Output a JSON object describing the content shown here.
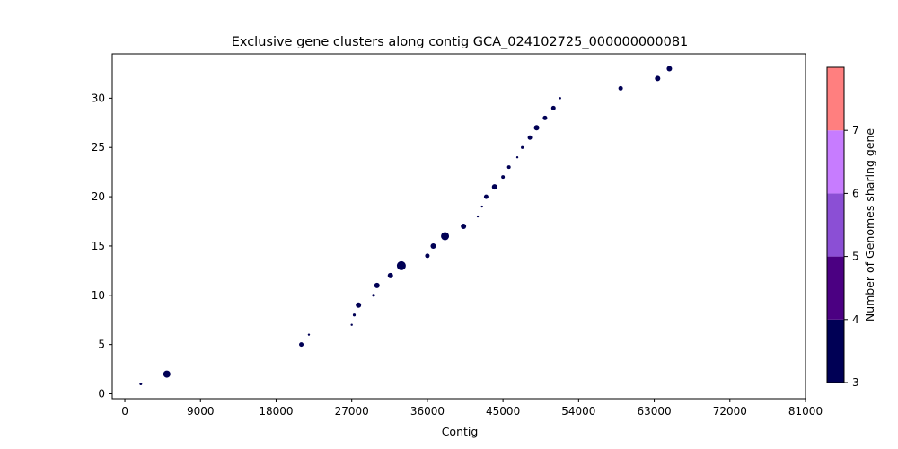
{
  "chart_data": {
    "type": "scatter",
    "title": "Exclusive gene clusters along contig GCA_024102725_000000000081",
    "xlabel": "Contig",
    "ylabel": "",
    "xlim": [
      -1500,
      81000
    ],
    "ylim": [
      -0.5,
      34.5
    ],
    "xticks": [
      0,
      9000,
      18000,
      27000,
      36000,
      45000,
      54000,
      63000,
      72000,
      81000
    ],
    "xtick_labels": [
      "0",
      "9000",
      "18000",
      "27000",
      "36000",
      "45000",
      "54000",
      "63000",
      "72000",
      "81000"
    ],
    "yticks": [
      0,
      5,
      10,
      15,
      20,
      25,
      30
    ],
    "ytick_labels": [
      "0",
      "5",
      "10",
      "15",
      "20",
      "25",
      "30"
    ],
    "grid": false,
    "points": [
      {
        "x": 1900,
        "y": 1,
        "size": 1.5,
        "genomes": 3
      },
      {
        "x": 5000,
        "y": 2,
        "size": 4,
        "genomes": 3
      },
      {
        "x": 21000,
        "y": 5,
        "size": 2.5,
        "genomes": 3
      },
      {
        "x": 21900,
        "y": 6,
        "size": 1.2,
        "genomes": 3
      },
      {
        "x": 27000,
        "y": 7,
        "size": 1.2,
        "genomes": 3
      },
      {
        "x": 27300,
        "y": 8,
        "size": 1.6,
        "genomes": 3
      },
      {
        "x": 27800,
        "y": 9,
        "size": 3,
        "genomes": 3
      },
      {
        "x": 29600,
        "y": 10,
        "size": 1.6,
        "genomes": 3
      },
      {
        "x": 30000,
        "y": 11,
        "size": 3,
        "genomes": 3
      },
      {
        "x": 31600,
        "y": 12,
        "size": 3,
        "genomes": 3
      },
      {
        "x": 32900,
        "y": 13,
        "size": 5,
        "genomes": 3
      },
      {
        "x": 36000,
        "y": 14,
        "size": 2.5,
        "genomes": 3
      },
      {
        "x": 36700,
        "y": 15,
        "size": 3,
        "genomes": 3
      },
      {
        "x": 38100,
        "y": 16,
        "size": 4.5,
        "genomes": 3
      },
      {
        "x": 40300,
        "y": 17,
        "size": 3,
        "genomes": 3
      },
      {
        "x": 42000,
        "y": 18,
        "size": 1.2,
        "genomes": 3
      },
      {
        "x": 42500,
        "y": 19,
        "size": 1.2,
        "genomes": 3
      },
      {
        "x": 43000,
        "y": 20,
        "size": 2.5,
        "genomes": 3
      },
      {
        "x": 44000,
        "y": 21,
        "size": 3,
        "genomes": 3
      },
      {
        "x": 45000,
        "y": 22,
        "size": 2,
        "genomes": 3
      },
      {
        "x": 45700,
        "y": 23,
        "size": 2,
        "genomes": 3
      },
      {
        "x": 46700,
        "y": 24,
        "size": 1.2,
        "genomes": 3
      },
      {
        "x": 47300,
        "y": 25,
        "size": 1.6,
        "genomes": 3
      },
      {
        "x": 48200,
        "y": 26,
        "size": 2.5,
        "genomes": 3
      },
      {
        "x": 49000,
        "y": 27,
        "size": 3,
        "genomes": 3
      },
      {
        "x": 50000,
        "y": 28,
        "size": 2.5,
        "genomes": 3
      },
      {
        "x": 51000,
        "y": 29,
        "size": 2.5,
        "genomes": 3
      },
      {
        "x": 51800,
        "y": 30,
        "size": 1.2,
        "genomes": 3
      },
      {
        "x": 59000,
        "y": 31,
        "size": 2.5,
        "genomes": 3
      },
      {
        "x": 63400,
        "y": 32,
        "size": 3,
        "genomes": 3
      },
      {
        "x": 64800,
        "y": 33,
        "size": 3,
        "genomes": 3
      }
    ],
    "point_color": "#000055",
    "colorbar": {
      "label": "Number of Genomes sharing gene",
      "tick_labels": [
        "3",
        "4",
        "5",
        "6",
        "7"
      ],
      "bands": [
        "#000055",
        "#4b0082",
        "#8b4fd5",
        "#c77cff",
        "#ff7f7f"
      ]
    }
  }
}
